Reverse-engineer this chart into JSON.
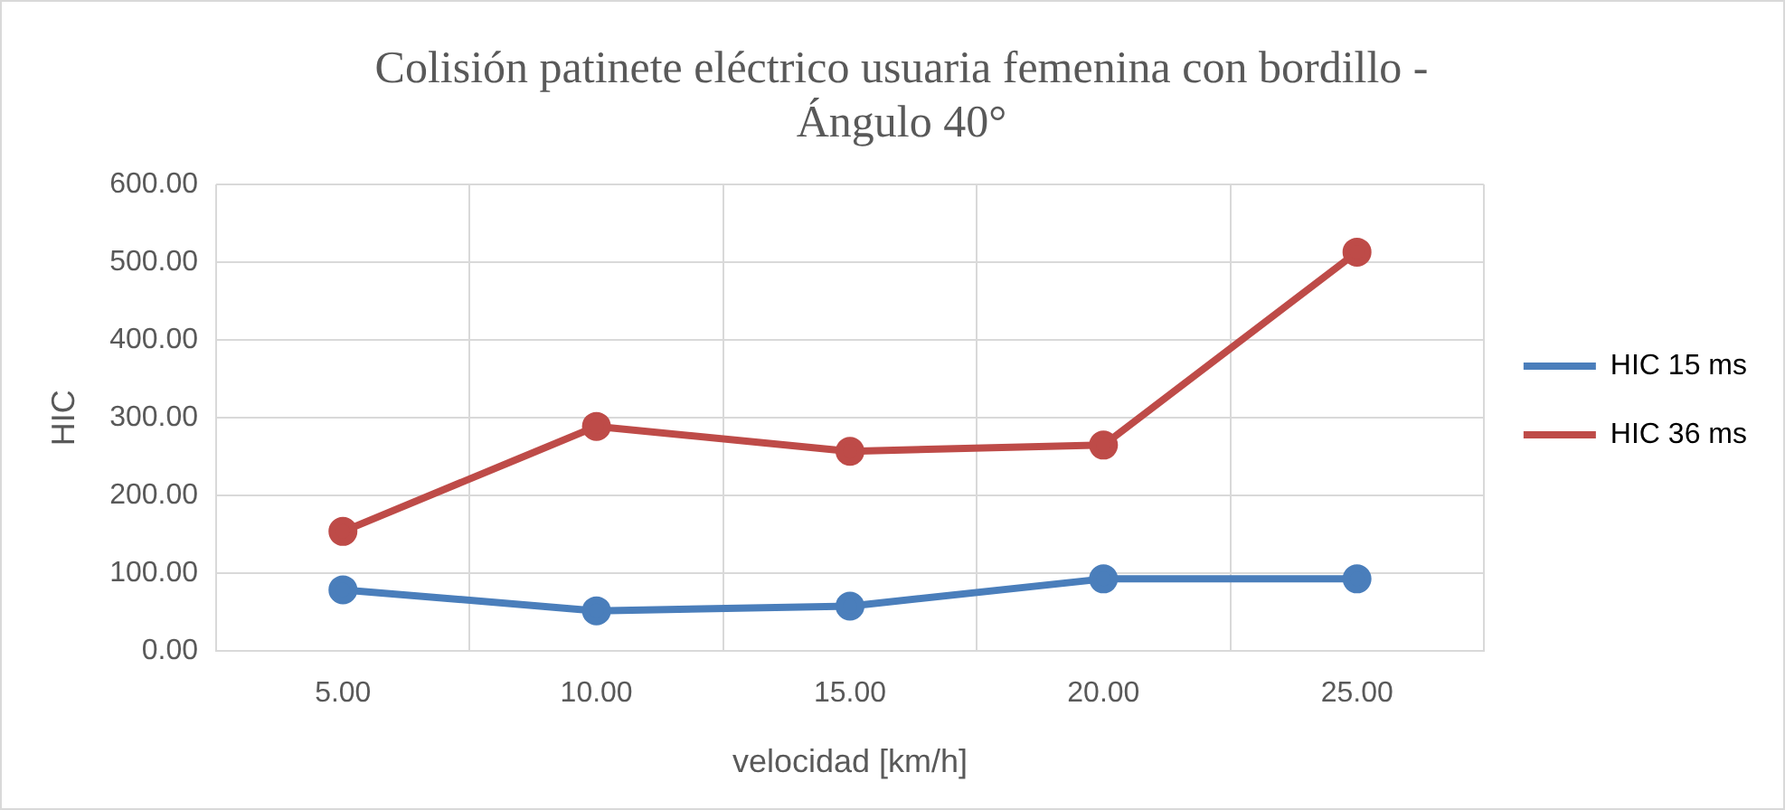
{
  "chart_data": {
    "type": "line",
    "title": "Colisión patinete eléctrico usuaria femenina con bordillo - Ángulo 40°",
    "xlabel": "velocidad [km/h]",
    "ylabel": "HIC",
    "categories": [
      "5.00",
      "10.00",
      "15.00",
      "20.00",
      "25.00"
    ],
    "series": [
      {
        "name": "HIC 15 ms",
        "color": "#4a7ebb",
        "values": [
          79,
          52,
          58,
          93,
          93
        ]
      },
      {
        "name": "HIC 36 ms",
        "color": "#be4b48",
        "values": [
          154,
          289,
          257,
          265,
          513
        ]
      }
    ],
    "ylim": [
      0,
      600
    ],
    "yticks": [
      {
        "value": 0,
        "label": "0.00"
      },
      {
        "value": 100,
        "label": "100.00"
      },
      {
        "value": 200,
        "label": "200.00"
      },
      {
        "value": 300,
        "label": "300.00"
      },
      {
        "value": 400,
        "label": "400.00"
      },
      {
        "value": 500,
        "label": "500.00"
      },
      {
        "value": 600,
        "label": "600.00"
      }
    ],
    "grid": true,
    "legend": "right",
    "marker": "circle",
    "line_style": "solid"
  }
}
